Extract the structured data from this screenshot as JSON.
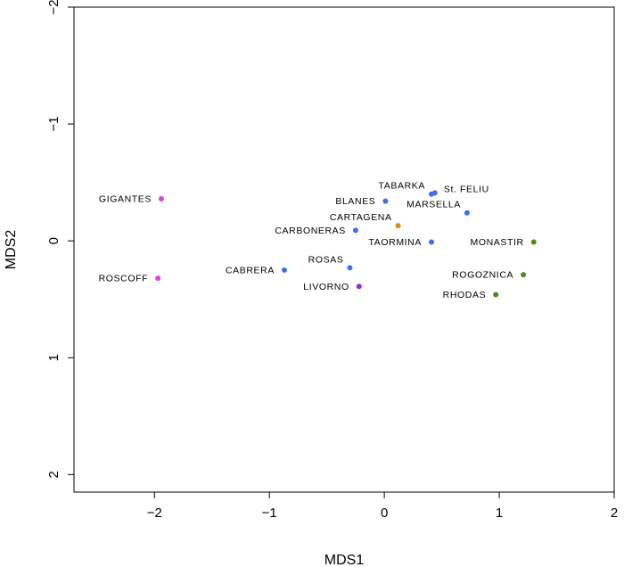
{
  "chart_data": {
    "type": "scatter",
    "title": "",
    "xlabel": "MDS1",
    "ylabel": "MDS2",
    "xlim": [
      -2.7,
      2.0
    ],
    "ylim": [
      -2.0,
      2.15
    ],
    "y_inverted": true,
    "grid": false,
    "legend": "none",
    "x_ticks": [
      {
        "value": -2,
        "label": "−2"
      },
      {
        "value": -1,
        "label": "−1"
      },
      {
        "value": 0,
        "label": "0"
      },
      {
        "value": 1,
        "label": "1"
      },
      {
        "value": 2,
        "label": "2"
      }
    ],
    "y_ticks": [
      {
        "value": -2,
        "label": "−2"
      },
      {
        "value": -1,
        "label": "−1"
      },
      {
        "value": 0,
        "label": "0"
      },
      {
        "value": 1,
        "label": "1"
      },
      {
        "value": 2,
        "label": "2"
      }
    ],
    "points": [
      {
        "label": "GIGANTES",
        "x": -1.94,
        "y": -0.36,
        "color": "#e040e0",
        "label_side": "left"
      },
      {
        "label": "ROSCOFF",
        "x": -1.97,
        "y": 0.32,
        "color": "#e040e0",
        "label_side": "left"
      },
      {
        "label": "TABARKA",
        "x": 0.41,
        "y": -0.4,
        "color": "#3b6fe8",
        "label_side": "left-above"
      },
      {
        "label": "St. FELIU",
        "x": 0.44,
        "y": -0.41,
        "color": "#3b6fe8",
        "label_side": "right-above"
      },
      {
        "label": "BLANES",
        "x": 0.01,
        "y": -0.34,
        "color": "#3b6fe8",
        "label_side": "left"
      },
      {
        "label": "MARSELLA",
        "x": 0.72,
        "y": -0.24,
        "color": "#3b6fe8",
        "label_side": "left-above"
      },
      {
        "label": "CARTAGENA",
        "x": 0.12,
        "y": -0.13,
        "color": "#e08a1a",
        "label_side": "left-above"
      },
      {
        "label": "CARBONERAS",
        "x": -0.25,
        "y": -0.09,
        "color": "#3b6fe8",
        "label_side": "left"
      },
      {
        "label": "TAORMINA",
        "x": 0.41,
        "y": 0.01,
        "color": "#3b6fe8",
        "label_side": "left"
      },
      {
        "label": "MONASTIR",
        "x": 1.3,
        "y": 0.01,
        "color": "#4f8a1e",
        "label_side": "left"
      },
      {
        "label": "CABRERA",
        "x": -0.87,
        "y": 0.25,
        "color": "#3b6fe8",
        "label_side": "left"
      },
      {
        "label": "ROSAS",
        "x": -0.3,
        "y": 0.23,
        "color": "#3b6fe8",
        "label_side": "left-above"
      },
      {
        "label": "ROGOZNICA",
        "x": 1.21,
        "y": 0.29,
        "color": "#4f8a1e",
        "label_side": "left"
      },
      {
        "label": "LIVORNO",
        "x": -0.22,
        "y": 0.39,
        "color": "#8a2be2",
        "label_side": "left"
      },
      {
        "label": "RHODAS",
        "x": 0.97,
        "y": 0.46,
        "color": "#4f8a1e",
        "label_side": "left"
      }
    ]
  }
}
